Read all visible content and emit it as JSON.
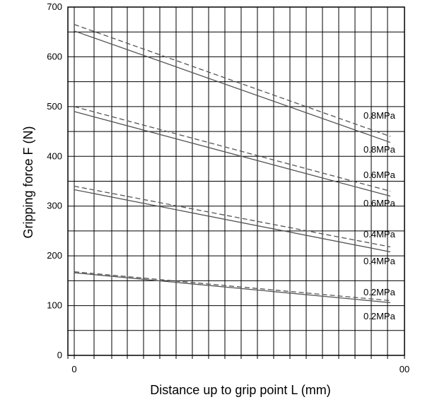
{
  "chart_data": {
    "type": "line",
    "title": "",
    "xlabel": "Distance up to grip point L (mm)",
    "ylabel": "Gripping force F (N)",
    "xlim": [
      0,
      100
    ],
    "ylim": [
      0,
      700
    ],
    "x_ticks": [
      "0",
      "00"
    ],
    "y_ticks": [
      "0",
      "100",
      "200",
      "300",
      "400",
      "500",
      "600",
      "700"
    ],
    "grid": true,
    "series": [
      {
        "name": "0.8MPa",
        "style": "dashed",
        "x": [
          0,
          100
        ],
        "y": [
          665,
          440
        ]
      },
      {
        "name": "0.8MPa",
        "style": "solid",
        "x": [
          0,
          100
        ],
        "y": [
          652,
          428
        ]
      },
      {
        "name": "0.6MPa",
        "style": "dashed",
        "x": [
          0,
          100
        ],
        "y": [
          500,
          330
        ]
      },
      {
        "name": "0.6MPa",
        "style": "solid",
        "x": [
          0,
          100
        ],
        "y": [
          490,
          320
        ]
      },
      {
        "name": "0.4MPa",
        "style": "dashed",
        "x": [
          0,
          100
        ],
        "y": [
          340,
          218
        ]
      },
      {
        "name": "0.4MPa",
        "style": "solid",
        "x": [
          0,
          100
        ],
        "y": [
          333,
          208
        ]
      },
      {
        "name": "0.2MPa",
        "style": "dashed",
        "x": [
          0,
          100
        ],
        "y": [
          168,
          110
        ]
      },
      {
        "name": "0.2MPa",
        "style": "solid",
        "x": [
          0,
          100
        ],
        "y": [
          166,
          106
        ]
      }
    ]
  }
}
